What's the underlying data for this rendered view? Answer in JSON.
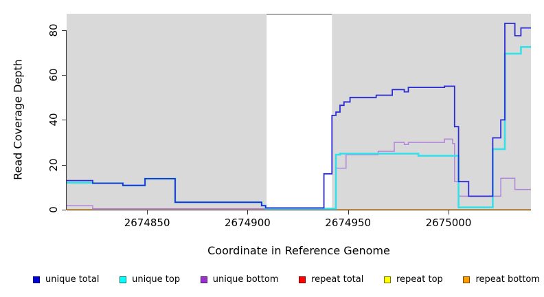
{
  "figure": {
    "x_axis_title": "Coordinate in Reference Genome",
    "y_axis_title": "Read Coverage Depth",
    "x_tick_labels": [
      "2674850",
      "2674900",
      "2674950",
      "2675000"
    ],
    "x_tick_values": [
      2674850,
      2674900,
      2674950,
      2675000
    ],
    "y_tick_labels": [
      "0",
      "20",
      "40",
      "60",
      "80"
    ],
    "y_tick_values": [
      0,
      20,
      40,
      60,
      80
    ],
    "legend_items": [
      {
        "label": "unique total",
        "color": "#0000dd"
      },
      {
        "label": "unique top",
        "color": "#00ffff"
      },
      {
        "label": "unique bottom",
        "color": "#9b30d0"
      },
      {
        "label": "repeat total",
        "color": "#ff0000"
      },
      {
        "label": "repeat top",
        "color": "#ffff00"
      },
      {
        "label": "repeat bottom",
        "color": "#ff9d00"
      }
    ]
  },
  "chart_data": {
    "type": "line",
    "title": "",
    "xlabel": "Coordinate in Reference Genome",
    "ylabel": "Read Coverage Depth",
    "xlim": [
      2674810,
      2675041
    ],
    "ylim": [
      0,
      87.3
    ],
    "grid": false,
    "legend_position": "bottom",
    "step": true,
    "panel_background": "#ffffff",
    "background_regions": [
      {
        "x0": 2674810,
        "x1": 2674909.5,
        "color": "#d9d9d9",
        "note": "covered region left of gap"
      },
      {
        "x0": 2674942,
        "x1": 2675041,
        "color": "#d9d9d9",
        "note": "covered region right of gap"
      }
    ],
    "gap_region": {
      "x0": 2674909.5,
      "x1": 2674942,
      "color": "#ffffff",
      "top_border_color": "#8f8f8f"
    },
    "series": [
      {
        "name": "repeat top",
        "color": "#ffff00",
        "width": 1.4,
        "points": [
          [
            2674810,
            0
          ],
          [
            2675041,
            0
          ]
        ]
      },
      {
        "name": "repeat total",
        "color": "#d4537a",
        "width": 1.5,
        "points": [
          [
            2674810,
            0
          ],
          [
            2674823,
            0.4
          ],
          [
            2674943,
            0.4
          ],
          [
            2674943,
            0
          ],
          [
            2675041,
            0
          ]
        ]
      },
      {
        "name": "repeat bottom",
        "color": "#ff9100",
        "width": 1.8,
        "points": [
          [
            2674810,
            0
          ],
          [
            2675041,
            0
          ]
        ]
      },
      {
        "name": "unique bottom",
        "color": "#b285dc",
        "width": 1.5,
        "points": [
          [
            2674810,
            1.8
          ],
          [
            2674823,
            0.3
          ],
          [
            2674944,
            18.5
          ],
          [
            2674949,
            24.5
          ],
          [
            2674965,
            26
          ],
          [
            2674973,
            30
          ],
          [
            2674978,
            29
          ],
          [
            2674980,
            30
          ],
          [
            2674998,
            31.5
          ],
          [
            2675002,
            29.5
          ],
          [
            2675003,
            12.5
          ],
          [
            2675005,
            6
          ],
          [
            2675026,
            14
          ],
          [
            2675033,
            9
          ],
          [
            2675041,
            9
          ]
        ]
      },
      {
        "name": "unique top",
        "color": "#35e0e8",
        "width": 2.6,
        "points": [
          [
            2674810,
            12
          ],
          [
            2674823,
            11.8
          ],
          [
            2674838,
            10.8
          ],
          [
            2674849,
            13.8
          ],
          [
            2674864,
            3.3
          ],
          [
            2674907,
            1.8
          ],
          [
            2674909,
            0.5
          ],
          [
            2674944,
            24.5
          ],
          [
            2674946,
            25
          ],
          [
            2674985,
            24
          ],
          [
            2675005,
            1
          ],
          [
            2675022,
            27
          ],
          [
            2675028,
            69.5
          ],
          [
            2675036,
            72.5
          ],
          [
            2675041,
            72.5
          ]
        ]
      },
      {
        "name": "unique total",
        "color": "#2b2bd5",
        "width": 1.8,
        "points": [
          [
            2674810,
            13
          ],
          [
            2674823,
            11.8
          ],
          [
            2674838,
            10.8
          ],
          [
            2674849,
            13.8
          ],
          [
            2674864,
            3.3
          ],
          [
            2674907,
            1.8
          ],
          [
            2674909,
            0.8
          ],
          [
            2674938,
            16
          ],
          [
            2674942,
            42
          ],
          [
            2674944,
            43.5
          ],
          [
            2674946,
            46.5
          ],
          [
            2674948,
            48
          ],
          [
            2674951,
            50
          ],
          [
            2674964,
            51
          ],
          [
            2674972,
            53.5
          ],
          [
            2674978,
            52.5
          ],
          [
            2674980,
            54.5
          ],
          [
            2674998,
            55
          ],
          [
            2675003,
            37
          ],
          [
            2675005,
            12.5
          ],
          [
            2675010,
            6
          ],
          [
            2675022,
            32
          ],
          [
            2675026,
            40
          ],
          [
            2675028,
            83
          ],
          [
            2675033,
            77.5
          ],
          [
            2675036,
            81
          ],
          [
            2675041,
            81
          ]
        ]
      }
    ]
  }
}
